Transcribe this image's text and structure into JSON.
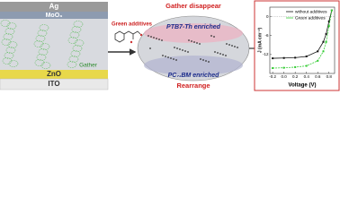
{
  "device": {
    "layers": [
      "Ag",
      "MoO₃",
      "ZnO",
      "ITO"
    ],
    "blend_label": "Gather"
  },
  "additive_label": "Green additives",
  "morphology": {
    "title": "Gather disappear",
    "top_label": "PTB7-Th enriched",
    "bottom_label": "PC₇₁BM enriched",
    "caption": "Rearrange"
  },
  "chart_data": {
    "type": "line",
    "x_label": "Voltage (V)",
    "y_label": "J (mA cm⁻²)",
    "x": [
      -0.2,
      0,
      0.2,
      0.4,
      0.6,
      0.7,
      0.75,
      0.8,
      0.85
    ],
    "series": [
      {
        "name": "without additives",
        "color": "#111111",
        "values": [
          -13.2,
          -13.1,
          -13,
          -12.6,
          -11,
          -8,
          -5.5,
          -1.5,
          2
        ]
      },
      {
        "name": "Green additives",
        "color": "#33cc33",
        "values": [
          -16.3,
          -16.2,
          -16,
          -15.6,
          -14,
          -11,
          -8,
          -3,
          2
        ]
      }
    ],
    "xlim": [
      -0.25,
      0.9
    ],
    "ylim": [
      -18,
      3
    ],
    "xticks": [
      {
        "value": -0.2,
        "label": "-0.2"
      },
      {
        "value": 0,
        "label": "0.0"
      },
      {
        "value": 0.2,
        "label": "0.2"
      },
      {
        "value": 0.4,
        "label": "0.4"
      },
      {
        "value": 0.6,
        "label": "0.6"
      },
      {
        "value": 0.8,
        "label": "0.8"
      }
    ],
    "yticks": [
      0,
      -6,
      -12
    ]
  }
}
